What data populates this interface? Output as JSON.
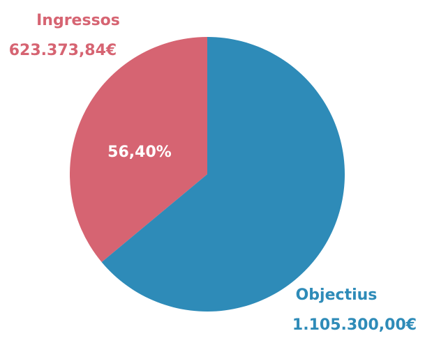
{
  "chart_data": {
    "type": "pie",
    "categories": [
      "Ingressos",
      "Objectius"
    ],
    "values": [
      623373.84,
      1105300.0
    ],
    "value_labels": [
      "623.373,84€",
      "1.105.300,00€"
    ],
    "colors": [
      "#d66472",
      "#2e8bb8"
    ],
    "annotation": "56,40%"
  }
}
